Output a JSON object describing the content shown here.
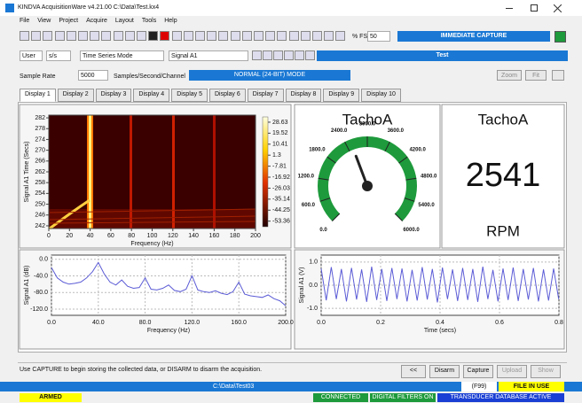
{
  "window": {
    "title": "KINDVA AcquisitionWare v4.21.00 C:\\Data\\Test.kx4"
  },
  "menu": [
    "File",
    "View",
    "Project",
    "Acquire",
    "Layout",
    "Tools",
    "Help"
  ],
  "toolbar": {
    "percent_label": "% FS",
    "percent_value": "50",
    "capture_button": "IMMEDIATE CAPTURE"
  },
  "toolbar2": {
    "user": "User",
    "units": "s/s",
    "mode": "Time Series Mode",
    "signal": "Signal A1",
    "status": "Test"
  },
  "sample_row": {
    "label": "Sample Rate",
    "value": "5000",
    "units": "Samples/Second/Channel",
    "mode": "NORMAL (24-BIT) MODE",
    "buttons": [
      "Zoom",
      "Fit"
    ]
  },
  "tabs": [
    "Display 1",
    "Display 2",
    "Display 3",
    "Display 4",
    "Display 5",
    "Display 6",
    "Display 7",
    "Display 8",
    "Display 9",
    "Display 10"
  ],
  "chart_data": [
    {
      "type": "heatmap",
      "ylabel": "Signal A1 Time (Secs)",
      "xlabel": "Frequency (Hz)",
      "xlim": [
        0,
        200
      ],
      "xticks": [
        0,
        20,
        40,
        60,
        80,
        100,
        120,
        140,
        160,
        180,
        200
      ],
      "ylim": [
        241,
        283
      ],
      "yticks": [
        282,
        278,
        274,
        270,
        266,
        262,
        258,
        254,
        250,
        246,
        242
      ],
      "clim": [
        -58,
        33
      ],
      "cticks": [
        28.63,
        19.52,
        10.41,
        1.3,
        -7.81,
        -16.92,
        -26.03,
        -35.14,
        -44.25,
        -53.36
      ]
    },
    {
      "type": "gauge",
      "title": "TachoA",
      "value": 2541,
      "ylim": [
        0,
        6000
      ],
      "yticks": [
        {
          "value": 0,
          "label": "0.0"
        },
        {
          "value": 600,
          "label": "600.0"
        },
        {
          "value": 1200,
          "label": "1200.0"
        },
        {
          "value": 1800,
          "label": "1800.0"
        },
        {
          "value": 2400,
          "label": "2400.0"
        },
        {
          "value": 3000,
          "label": "3000.0"
        },
        {
          "value": 3600,
          "label": "3600.0"
        },
        {
          "value": 4200,
          "label": "4200.0"
        },
        {
          "value": 4800,
          "label": "4800.0"
        },
        {
          "value": 5400,
          "label": "5400.0"
        },
        {
          "value": 6000,
          "label": "6000.0"
        }
      ],
      "color": "#1e9a3c"
    },
    {
      "type": "digital",
      "title": "TachoA",
      "value": 2541,
      "unit": "RPM"
    },
    {
      "type": "line",
      "ylabel": "Signal A1 (dB)",
      "xlabel": "Frequency (Hz)",
      "color": "#5b5bd6",
      "grid": true,
      "x": [
        0,
        5,
        10,
        15,
        20,
        25,
        30,
        35,
        40,
        45,
        50,
        55,
        60,
        65,
        70,
        75,
        80,
        85,
        90,
        95,
        100,
        105,
        110,
        115,
        120,
        125,
        130,
        135,
        140,
        145,
        150,
        155,
        160,
        165,
        170,
        175,
        180,
        185,
        190,
        195,
        200
      ],
      "values": [
        -20,
        -45,
        -55,
        -60,
        -58,
        -55,
        -45,
        -30,
        -8,
        -35,
        -55,
        -62,
        -50,
        -65,
        -70,
        -68,
        -45,
        -72,
        -74,
        -70,
        -62,
        -75,
        -78,
        -72,
        -40,
        -74,
        -78,
        -80,
        -76,
        -82,
        -85,
        -78,
        -55,
        -84,
        -88,
        -90,
        -92,
        -86,
        -95,
        -100,
        -112
      ],
      "xlim": [
        0,
        200
      ],
      "xticks": [
        {
          "value": 0,
          "label": "0.0"
        },
        {
          "value": 40,
          "label": "40.0"
        },
        {
          "value": 80,
          "label": "80.0"
        },
        {
          "value": 120,
          "label": "120.0"
        },
        {
          "value": 160,
          "label": "160.0"
        },
        {
          "value": 200,
          "label": "200.0"
        }
      ],
      "ylim": [
        -135,
        10
      ],
      "yticks": [
        {
          "value": 0,
          "label": "0.0"
        },
        {
          "value": -40,
          "label": "-40.0"
        },
        {
          "value": -80,
          "label": "-80.0"
        },
        {
          "value": -120,
          "label": "-120.0"
        }
      ]
    },
    {
      "type": "line",
      "ylabel": "Signal A1 (V)",
      "xlabel": "Time (secs)",
      "color": "#5b5bd6",
      "grid": true,
      "x": [
        0,
        0.017,
        0.034,
        0.051,
        0.068,
        0.085,
        0.102,
        0.119,
        0.136,
        0.153,
        0.17,
        0.187,
        0.204,
        0.221,
        0.238,
        0.255,
        0.272,
        0.289,
        0.306,
        0.323,
        0.34,
        0.357,
        0.374,
        0.391,
        0.408,
        0.425,
        0.442,
        0.459,
        0.476,
        0.493,
        0.51,
        0.527,
        0.544,
        0.561,
        0.578,
        0.595,
        0.612,
        0.629,
        0.646,
        0.663,
        0.68,
        0.697,
        0.714,
        0.731,
        0.748,
        0.765,
        0.782,
        0.799
      ],
      "values": [
        0.72,
        -0.65,
        0.78,
        -0.6,
        0.7,
        -0.7,
        0.75,
        -0.62,
        0.68,
        -0.72,
        0.8,
        -0.64,
        0.7,
        -0.68,
        0.74,
        -0.6,
        0.72,
        -0.7,
        0.66,
        -0.66,
        0.78,
        -0.62,
        0.7,
        -0.74,
        0.76,
        -0.6,
        0.68,
        -0.68,
        0.74,
        -0.64,
        0.7,
        -0.72,
        0.8,
        -0.6,
        0.66,
        -0.7,
        0.72,
        -0.64,
        0.76,
        -0.68,
        0.7,
        -0.62,
        0.74,
        -0.7,
        0.68,
        -0.66,
        0.72,
        -0.6
      ],
      "xlim": [
        0,
        0.8
      ],
      "xticks": [
        {
          "value": 0,
          "label": "0.0"
        },
        {
          "value": 0.2,
          "label": "0.2"
        },
        {
          "value": 0.4,
          "label": "0.4"
        },
        {
          "value": 0.6,
          "label": "0.6"
        },
        {
          "value": 0.8,
          "label": "0.8"
        }
      ],
      "ylim": [
        -1.3,
        1.3
      ],
      "yticks": [
        {
          "value": 1,
          "label": "1.0"
        },
        {
          "value": 0,
          "label": "0.0"
        },
        {
          "value": -1,
          "label": "-1.0"
        }
      ]
    }
  ],
  "status": {
    "message": "Use CAPTURE to begin storing the collected data, or DISARM to disarm the acquisition.",
    "buttons": [
      "<<",
      "Disarm",
      "Capture",
      "Upload",
      "Show"
    ],
    "file": "C:\\Data\\Test03",
    "file_code": "(F99)",
    "file_state": "FILE IN USE",
    "indicators": [
      "ARMED",
      "CONNECTED",
      "DIGITAL FILTERS ON",
      "TRANSDUCER DATABASE ACTIVE"
    ]
  }
}
